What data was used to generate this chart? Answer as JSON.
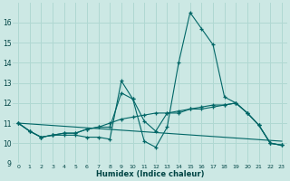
{
  "xlabel": "Humidex (Indice chaleur)",
  "background_color": "#cce8e4",
  "grid_color": "#b0d8d2",
  "line_color": "#006666",
  "xlim": [
    -0.5,
    23.5
  ],
  "ylim": [
    9,
    17
  ],
  "yticks": [
    9,
    10,
    11,
    12,
    13,
    14,
    15,
    16
  ],
  "xticks": [
    0,
    1,
    2,
    3,
    4,
    5,
    6,
    7,
    8,
    9,
    10,
    11,
    12,
    13,
    14,
    15,
    16,
    17,
    18,
    19,
    20,
    21,
    22,
    23
  ],
  "xtick_labels": [
    "0",
    "1",
    "2",
    "3",
    "4",
    "5",
    "6",
    "7",
    "8",
    "9",
    "10",
    "11",
    "12",
    "13",
    "14",
    "15",
    "16",
    "17",
    "18",
    "19",
    "20",
    "21",
    "22",
    "23"
  ],
  "series": [
    {
      "x": [
        0,
        1,
        2,
        3,
        4,
        5,
        6,
        7,
        8,
        9,
        10,
        11,
        12,
        13,
        14,
        15,
        16,
        17,
        18,
        19,
        20,
        21,
        22,
        23
      ],
      "y": [
        11.0,
        10.6,
        10.3,
        10.4,
        10.4,
        10.4,
        10.3,
        10.3,
        10.2,
        13.1,
        12.2,
        10.1,
        9.8,
        10.8,
        14.0,
        16.5,
        15.7,
        14.9,
        12.3,
        12.0,
        11.5,
        10.9,
        10.0,
        9.9
      ],
      "marker": true
    },
    {
      "x": [
        0,
        1,
        2,
        3,
        4,
        5,
        6,
        7,
        8,
        9,
        10,
        11,
        12,
        13,
        14,
        15,
        16,
        17,
        18,
        19,
        20,
        21,
        22,
        23
      ],
      "y": [
        11.0,
        10.6,
        10.3,
        10.4,
        10.5,
        10.5,
        10.7,
        10.8,
        10.8,
        12.5,
        12.2,
        11.1,
        10.6,
        11.5,
        11.5,
        11.7,
        11.8,
        11.9,
        11.9,
        12.0,
        11.5,
        10.9,
        10.0,
        9.9
      ],
      "marker": true
    },
    {
      "x": [
        0,
        1,
        2,
        3,
        4,
        5,
        6,
        7,
        8,
        9,
        10,
        11,
        12,
        13,
        14,
        15,
        16,
        17,
        18,
        19,
        20,
        21,
        22,
        23
      ],
      "y": [
        11.0,
        10.6,
        10.3,
        10.4,
        10.5,
        10.5,
        10.7,
        10.8,
        11.0,
        11.2,
        11.3,
        11.4,
        11.5,
        11.5,
        11.6,
        11.7,
        11.7,
        11.8,
        11.9,
        12.0,
        11.5,
        10.9,
        10.0,
        9.9
      ],
      "marker": true
    },
    {
      "x": [
        0,
        23
      ],
      "y": [
        11.0,
        10.1
      ],
      "marker": false
    }
  ]
}
